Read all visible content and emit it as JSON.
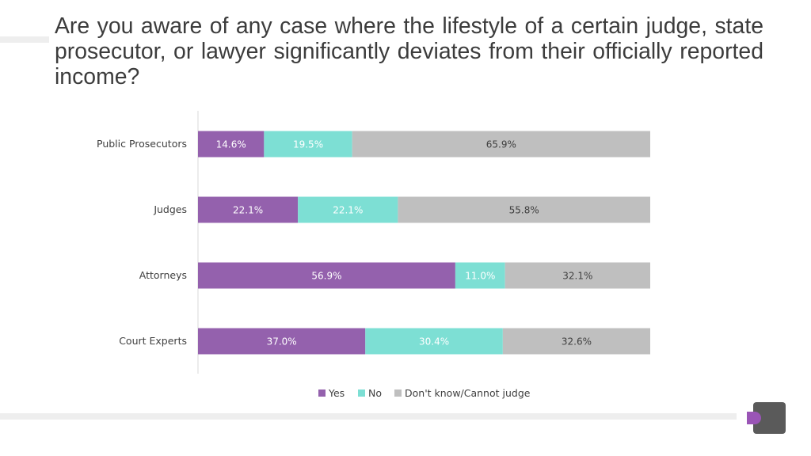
{
  "title": "Are you aware of any case where the lifestyle of a certain judge, state prosecutor, or lawyer significantly deviates from their officially reported income?",
  "logo": {
    "icon": "d-logo-icon"
  },
  "colors": {
    "yes": "#9461ad",
    "no": "#7ddfd4",
    "dont_know": "#bfbfbf",
    "label_text": "#404040",
    "title_text": "#3c3c3c",
    "axis_line": "#d9d9d9"
  },
  "chart_data": {
    "type": "bar",
    "orientation": "horizontal",
    "stacked": true,
    "title": "",
    "xlabel": "",
    "ylabel": "",
    "xlim": [
      0,
      100
    ],
    "unit": "%",
    "grid": false,
    "legend_position": "bottom",
    "categories": [
      "Public Prosecutors",
      "Judges",
      "Attorneys",
      "Court Experts"
    ],
    "series": [
      {
        "name": "Yes",
        "values": [
          14.6,
          22.1,
          56.9,
          37.0
        ],
        "labels": [
          "14.6%",
          "22.1%",
          "56.9%",
          "37.0%"
        ]
      },
      {
        "name": "No",
        "values": [
          19.5,
          22.1,
          11.0,
          30.4
        ],
        "labels": [
          "19.5%",
          "22.1%",
          "11.0%",
          "30.4%"
        ]
      },
      {
        "name": "Don't know/Cannot judge",
        "values": [
          65.9,
          55.8,
          32.1,
          32.6
        ],
        "labels": [
          "65.9%",
          "55.8%",
          "32.1%",
          "32.6%"
        ]
      }
    ]
  }
}
